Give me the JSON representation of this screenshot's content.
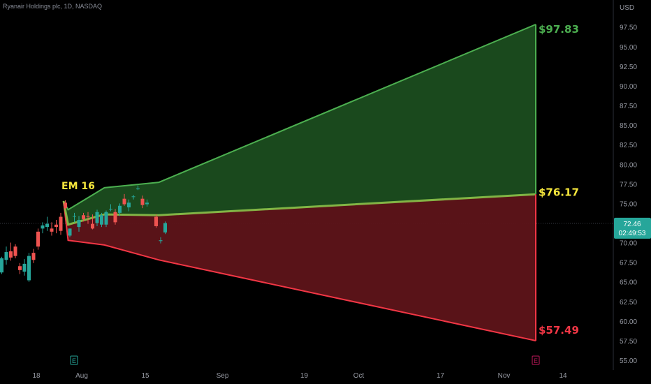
{
  "header": {
    "title": "Ryanair Holdings plc, 1D, NASDAQ"
  },
  "axis": {
    "currency": "USD"
  },
  "price_badge": {
    "price": "72.46",
    "countdown": "02:49:53",
    "color": "#26a69a"
  },
  "colors": {
    "up": "#26a69a",
    "down": "#ef5350",
    "upper": "#4caf50",
    "lower": "#f23645",
    "mid": "#f5e63c"
  },
  "chart_data": {
    "type": "candlestick",
    "ylim": [
      54.5,
      99.5
    ],
    "yticks": [
      "55.00",
      "57.50",
      "60.00",
      "62.50",
      "65.00",
      "67.50",
      "70.00",
      "72.50",
      "75.00",
      "77.50",
      "80.00",
      "82.50",
      "85.00",
      "87.50",
      "90.00",
      "92.50",
      "95.00",
      "97.50"
    ],
    "xticks": [
      {
        "label": "18",
        "day": 8
      },
      {
        "label": "Aug",
        "day": 18
      },
      {
        "label": "15",
        "day": 32
      },
      {
        "label": "Sep",
        "day": 49
      },
      {
        "label": "19",
        "day": 67
      },
      {
        "label": "Oct",
        "day": 79
      },
      {
        "label": "17",
        "day": 97
      },
      {
        "label": "Nov",
        "day": 111
      },
      {
        "label": "14",
        "day": 124
      }
    ],
    "candles": [
      {
        "day": 0,
        "o": 66.2,
        "h": 68.2,
        "l": 66.0,
        "c": 68.0
      },
      {
        "day": 1,
        "o": 67.8,
        "h": 69.5,
        "l": 67.2,
        "c": 68.8
      },
      {
        "day": 2,
        "o": 68.9,
        "h": 70.0,
        "l": 67.7,
        "c": 68.1
      },
      {
        "day": 3,
        "o": 69.5,
        "h": 69.8,
        "l": 68.0,
        "c": 68.3
      },
      {
        "day": 4,
        "o": 67.0,
        "h": 67.4,
        "l": 66.0,
        "c": 66.5
      },
      {
        "day": 5,
        "o": 66.3,
        "h": 67.9,
        "l": 65.8,
        "c": 67.3
      },
      {
        "day": 6,
        "o": 65.2,
        "h": 68.7,
        "l": 65.0,
        "c": 68.3
      },
      {
        "day": 7,
        "o": 68.7,
        "h": 69.2,
        "l": 67.4,
        "c": 67.8
      },
      {
        "day": 8,
        "o": 71.4,
        "h": 71.8,
        "l": 69.1,
        "c": 69.5
      },
      {
        "day": 9,
        "o": 71.8,
        "h": 72.6,
        "l": 71.2,
        "c": 72.2
      },
      {
        "day": 10,
        "o": 72.0,
        "h": 73.3,
        "l": 71.5,
        "c": 72.4
      },
      {
        "day": 11,
        "o": 71.8,
        "h": 72.6,
        "l": 70.9,
        "c": 71.4
      },
      {
        "day": 12,
        "o": 72.3,
        "h": 72.9,
        "l": 71.2,
        "c": 72.0
      },
      {
        "day": 13,
        "o": 73.3,
        "h": 73.8,
        "l": 71.0,
        "c": 71.5
      },
      {
        "day": 14,
        "o": 75.1,
        "h": 75.4,
        "l": 74.2,
        "c": 74.4
      },
      {
        "day": 15,
        "o": 70.9,
        "h": 71.8,
        "l": 70.7,
        "c": 71.8
      },
      {
        "day": 16,
        "o": 73.4,
        "h": 73.8,
        "l": 72.6,
        "c": 73.4
      },
      {
        "day": 17,
        "o": 72.0,
        "h": 73.4,
        "l": 71.4,
        "c": 72.9
      },
      {
        "day": 18,
        "o": 73.5,
        "h": 73.8,
        "l": 72.7,
        "c": 73.0
      },
      {
        "day": 19,
        "o": 73.4,
        "h": 73.9,
        "l": 72.4,
        "c": 73.3
      },
      {
        "day": 20,
        "o": 72.4,
        "h": 73.6,
        "l": 71.7,
        "c": 71.8
      },
      {
        "day": 21,
        "o": 72.5,
        "h": 74.2,
        "l": 72.1,
        "c": 73.9
      },
      {
        "day": 22,
        "o": 72.3,
        "h": 73.8,
        "l": 72.0,
        "c": 73.5
      },
      {
        "day": 23,
        "o": 72.3,
        "h": 74.1,
        "l": 72.0,
        "c": 73.9
      },
      {
        "day": 24,
        "o": 74.3,
        "h": 74.9,
        "l": 74.0,
        "c": 74.3
      },
      {
        "day": 25,
        "o": 73.9,
        "h": 74.3,
        "l": 72.3,
        "c": 72.6
      },
      {
        "day": 26,
        "o": 73.8,
        "h": 75.0,
        "l": 73.4,
        "c": 74.7
      },
      {
        "day": 27,
        "o": 75.6,
        "h": 76.2,
        "l": 74.7,
        "c": 74.9
      },
      {
        "day": 28,
        "o": 74.5,
        "h": 75.5,
        "l": 74.0,
        "c": 75.1
      },
      {
        "day": 29,
        "o": 75.9,
        "h": 76.1,
        "l": 75.5,
        "c": 75.9
      },
      {
        "day": 30,
        "o": 76.9,
        "h": 77.3,
        "l": 76.7,
        "c": 76.9
      },
      {
        "day": 31,
        "o": 75.6,
        "h": 76.0,
        "l": 74.4,
        "c": 74.8
      },
      {
        "day": 32,
        "o": 74.9,
        "h": 75.5,
        "l": 74.6,
        "c": 75.1
      },
      {
        "day": 34,
        "o": 73.3,
        "h": 73.6,
        "l": 71.9,
        "c": 72.1
      },
      {
        "day": 35,
        "o": 70.2,
        "h": 70.7,
        "l": 69.9,
        "c": 70.3
      },
      {
        "day": 36,
        "o": 71.3,
        "h": 72.7,
        "l": 71.1,
        "c": 72.5
      }
    ],
    "ranges": {
      "upper": [
        {
          "day": 14,
          "v": 75.3
        },
        {
          "day": 15,
          "v": 74.2
        },
        {
          "day": 23,
          "v": 77.0
        },
        {
          "day": 35,
          "v": 77.7
        },
        {
          "day": 118,
          "v": 97.83
        }
      ],
      "mid": [
        {
          "day": 14,
          "v": 75.3
        },
        {
          "day": 15,
          "v": 72.3
        },
        {
          "day": 23,
          "v": 73.6
        },
        {
          "day": 35,
          "v": 73.5
        },
        {
          "day": 118,
          "v": 76.17
        }
      ],
      "lower": [
        {
          "day": 14,
          "v": 75.3
        },
        {
          "day": 15,
          "v": 70.3
        },
        {
          "day": 23,
          "v": 69.7
        },
        {
          "day": 35,
          "v": 67.8
        },
        {
          "day": 118,
          "v": 57.49
        }
      ]
    },
    "annotations": {
      "upper": "$97.83",
      "mid": "$76.17",
      "lower": "$57.49",
      "em": "EM 16"
    },
    "earnings_markers": [
      {
        "day": 16,
        "label": "E"
      },
      {
        "day": 118,
        "label": "E"
      }
    ]
  }
}
